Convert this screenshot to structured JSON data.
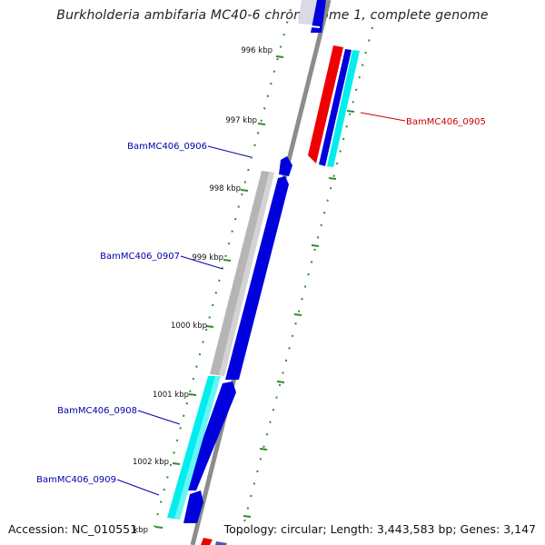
{
  "title": "Burkholderia ambifaria MC40-6 chromosome 1, complete genome",
  "footer": {
    "accession": "Accession: NC_010551",
    "summary": "Topology: circular; Length: 3,443,583 bp; Genes: 3,147"
  },
  "colors": {
    "backbone": "#8c8c8c",
    "forward_cds": "#0000dd",
    "reverse_cds": "#ee0000",
    "gene_gray": "#b5b5b5",
    "gene_cyan": "#00eeee",
    "tick": "#2e8b2e",
    "label_blue": "#0000aa",
    "label_red": "#cc0000"
  },
  "ticks": [
    {
      "label": "996 kbp"
    },
    {
      "label": "997 kbp"
    },
    {
      "label": "998 kbp"
    },
    {
      "label": "999 kbp"
    },
    {
      "label": "1000 kbp"
    },
    {
      "label": "1001 kbp"
    },
    {
      "label": "1002 kbp"
    },
    {
      "label": "kbp"
    }
  ],
  "gene_labels": [
    {
      "name": "BamMC406_0905",
      "strand": "reverse"
    },
    {
      "name": "BamMC406_0906",
      "strand": "forward"
    },
    {
      "name": "BamMC406_0907",
      "strand": "forward"
    },
    {
      "name": "BamMC406_0908",
      "strand": "forward"
    },
    {
      "name": "BamMC406_0909",
      "strand": "forward"
    }
  ]
}
